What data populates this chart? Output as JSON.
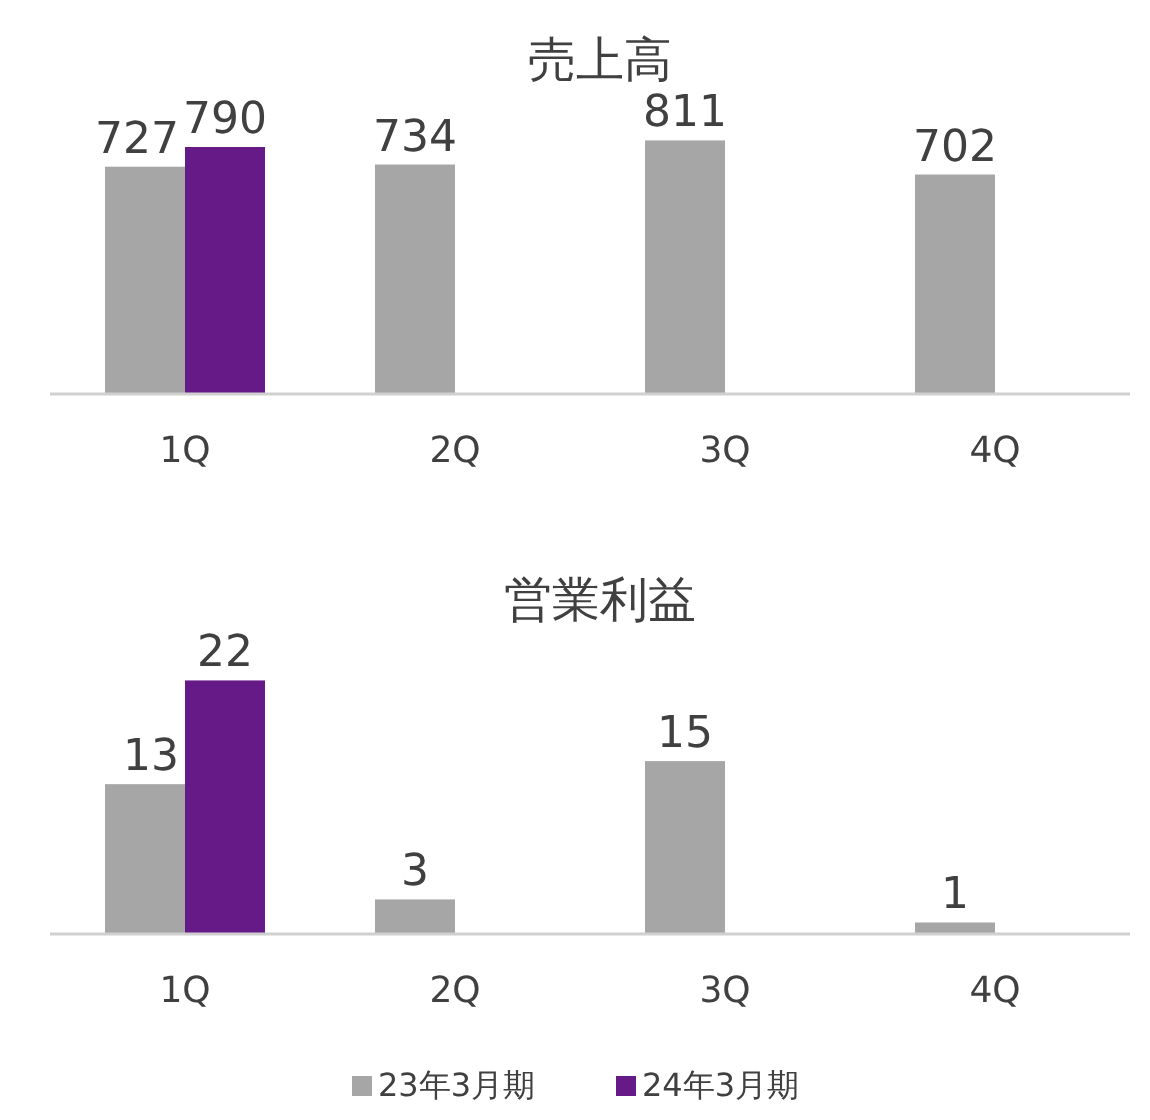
{
  "chart_data": [
    {
      "type": "bar",
      "title": "売上高",
      "categories": [
        "1Q",
        "2Q",
        "3Q",
        "4Q"
      ],
      "tick_labels": "x",
      "data_labels": true,
      "series": [
        {
          "color": "#a6a6a6",
          "values": [
            727,
            734,
            811,
            702
          ]
        },
        {
          "color": "#661a87",
          "values": [
            790,
            null,
            null,
            null
          ]
        }
      ]
    },
    {
      "type": "bar",
      "title": "営業利益",
      "categories": [
        "1Q",
        "2Q",
        "3Q",
        "4Q"
      ],
      "tick_labels": "x",
      "data_labels": true,
      "legend": "bottom",
      "series": [
        {
          "name": "23年3月期",
          "color": "#a6a6a6",
          "values": [
            13,
            3,
            15,
            1
          ]
        },
        {
          "name": "24年3月期",
          "color": "#661a87",
          "values": [
            22,
            null,
            null,
            null
          ]
        }
      ]
    }
  ]
}
